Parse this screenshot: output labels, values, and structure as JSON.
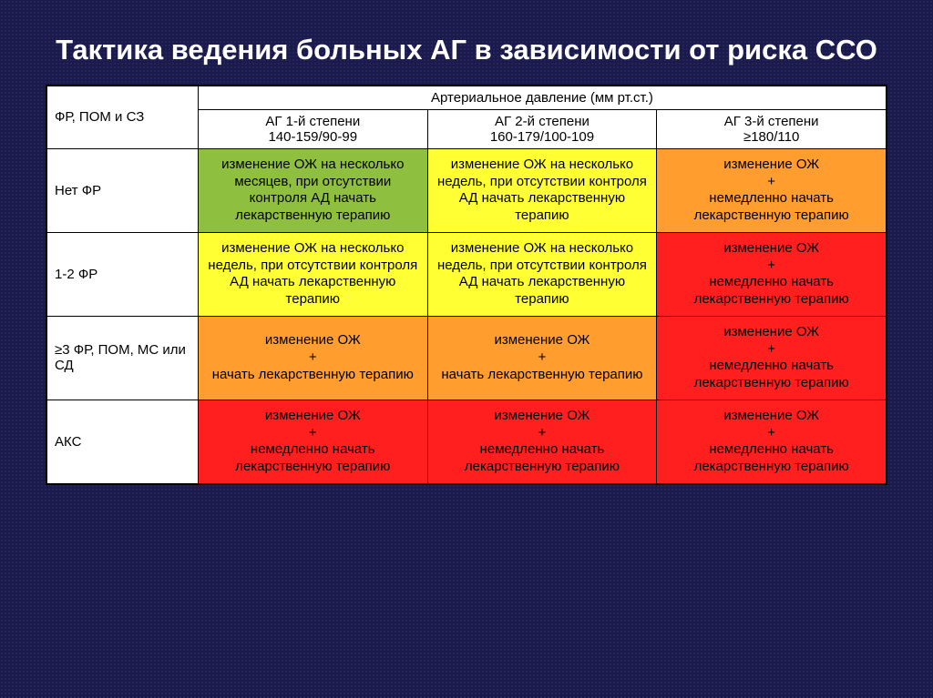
{
  "title": "Тактика ведения больных АГ в зависимости от риска ССО",
  "colors": {
    "green": "#8fbf3f",
    "yellow": "#ffff33",
    "orange": "#ff9e2e",
    "red": "#ff1f1f",
    "white": "#ffffff",
    "black": "#000000"
  },
  "table": {
    "top_left": "ФР, ПОМ и СЗ",
    "group_header": "Артериальное давление (мм рт.ст.)",
    "col_widths_pct": [
      18,
      27.3,
      27.3,
      27.3
    ],
    "columns": [
      {
        "line1": "АГ 1-й степени",
        "line2": "140-159/90-99"
      },
      {
        "line1": "АГ 2-й степени",
        "line2": "160-179/100-109"
      },
      {
        "line1": "АГ 3-й степени",
        "line2": "≥180/110"
      }
    ],
    "rows": [
      {
        "label": "Нет ФР",
        "cells": [
          {
            "text": "изменение ОЖ на несколько месяцев, при отсутствии контроля АД начать лекарственную терапию",
            "color": "green"
          },
          {
            "text": "изменение ОЖ на несколько недель, при отсутствии контроля АД начать лекарственную терапию",
            "color": "yellow"
          },
          {
            "text": "изменение ОЖ\n+\nнемедленно начать лекарственную терапию",
            "color": "orange"
          }
        ]
      },
      {
        "label": "1-2 ФР",
        "cells": [
          {
            "text": "изменение ОЖ на несколько недель, при отсутствии контроля АД начать лекарственную терапию",
            "color": "yellow"
          },
          {
            "text": "изменение ОЖ на несколько недель, при отсутствии контроля АД начать лекарственную терапию",
            "color": "yellow"
          },
          {
            "text": "изменение ОЖ\n+\nнемедленно начать лекарственную терапию",
            "color": "red"
          }
        ]
      },
      {
        "label": "≥3 ФР, ПОМ, МС или СД",
        "cells": [
          {
            "text": "изменение ОЖ\n+\nначать лекарственную терапию",
            "color": "orange"
          },
          {
            "text": "изменение ОЖ\n+\nначать лекарственную терапию",
            "color": "orange"
          },
          {
            "text": "изменение ОЖ\n+\nнемедленно начать лекарственную терапию",
            "color": "red"
          }
        ]
      },
      {
        "label": "АКС",
        "cells": [
          {
            "text": "изменение ОЖ\n+\nнемедленно начать лекарственную терапию",
            "color": "red"
          },
          {
            "text": "изменение ОЖ\n+\nнемедленно начать лекарственную терапию",
            "color": "red"
          },
          {
            "text": "изменение ОЖ\n+\nнемедленно начать лекарственную терапию",
            "color": "red"
          }
        ]
      }
    ]
  }
}
